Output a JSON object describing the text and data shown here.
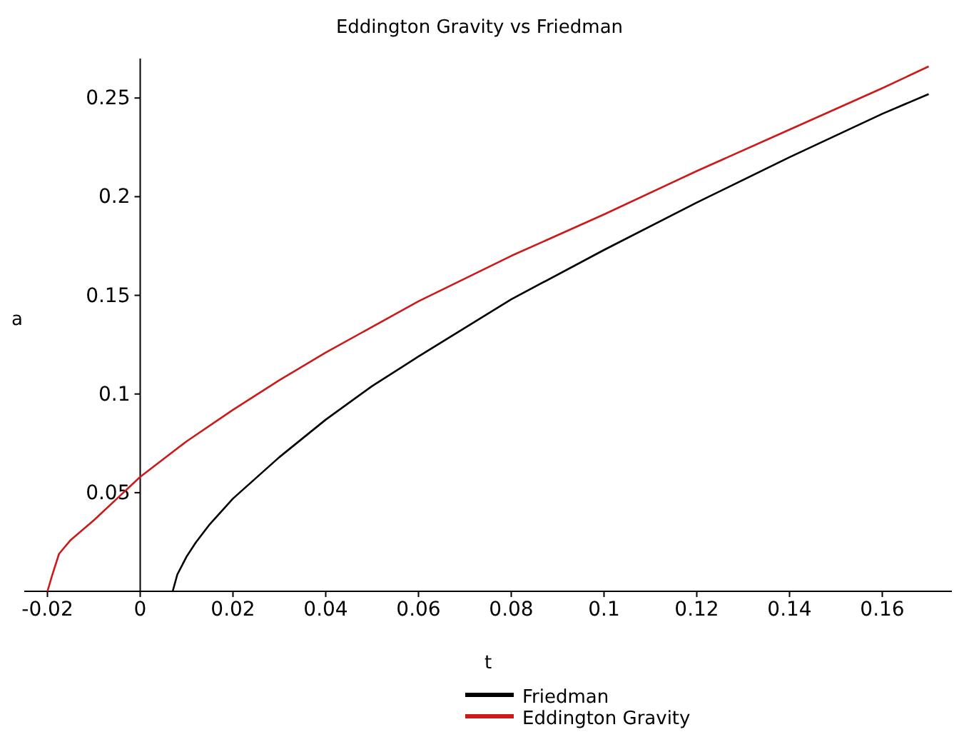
{
  "chart_data": {
    "type": "line",
    "title": "Eddington Gravity vs Friedman",
    "xlabel": "t",
    "ylabel": "a",
    "xlim": [
      -0.025,
      0.175
    ],
    "ylim": [
      0,
      0.27
    ],
    "xticks": [
      -0.02,
      0,
      0.02,
      0.04,
      0.06,
      0.08,
      0.1,
      0.12,
      0.14,
      0.16
    ],
    "yticks": [
      0.05,
      0.1,
      0.15,
      0.2,
      0.25
    ],
    "grid": false,
    "legend": "bottom",
    "marker": "none",
    "line_style": "solid",
    "series": [
      {
        "name": "Friedman",
        "color": "#000000",
        "x": [
          0.007,
          0.008,
          0.01,
          0.012,
          0.015,
          0.02,
          0.03,
          0.04,
          0.05,
          0.06,
          0.08,
          0.1,
          0.12,
          0.14,
          0.16,
          0.17
        ],
        "values": [
          0,
          0.0085,
          0.0176,
          0.0248,
          0.034,
          0.047,
          0.068,
          0.087,
          0.104,
          0.119,
          0.148,
          0.173,
          0.197,
          0.22,
          0.242,
          0.252
        ]
      },
      {
        "name": "Eddington Gravity",
        "color": "#cc1a1a",
        "x": [
          -0.02,
          -0.019,
          -0.0175,
          -0.015,
          -0.01,
          -0.005,
          0,
          0.01,
          0.02,
          0.03,
          0.04,
          0.06,
          0.08,
          0.1,
          0.12,
          0.14,
          0.16,
          0.17
        ],
        "values": [
          0,
          0.008,
          0.019,
          0.026,
          0.036,
          0.047,
          0.058,
          0.076,
          0.092,
          0.107,
          0.121,
          0.147,
          0.17,
          0.191,
          0.213,
          0.234,
          0.255,
          0.266
        ]
      }
    ]
  }
}
